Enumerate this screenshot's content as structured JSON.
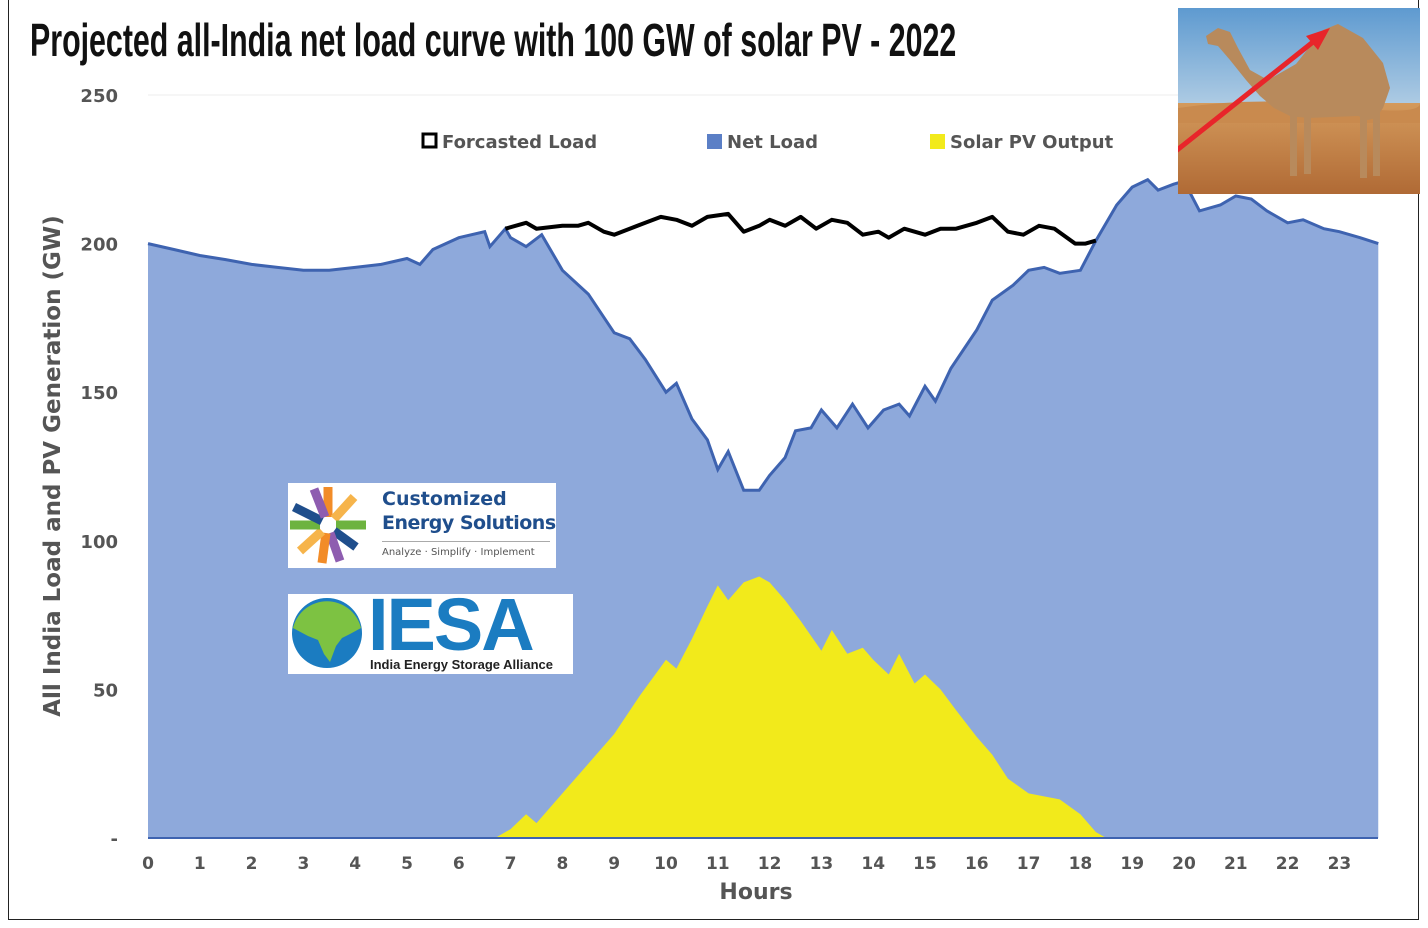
{
  "chart_data": {
    "type": "area",
    "title": "Projected all-India net load curve with 100 GW of solar PV - 2022",
    "xlabel": "Hours",
    "ylabel": "All India Load and PV Generation (GW)",
    "xlim": [
      0,
      23.75
    ],
    "ylim": [
      0,
      250
    ],
    "x_ticks": [
      "0",
      "1",
      "2",
      "3",
      "4",
      "5",
      "6",
      "7",
      "8",
      "9",
      "10",
      "11",
      "12",
      "13",
      "14",
      "15",
      "16",
      "17",
      "18",
      "19",
      "20",
      "21",
      "22",
      "23"
    ],
    "y_ticks": [
      "-",
      "50",
      "100",
      "150",
      "200",
      "250"
    ],
    "grid": false,
    "legend_position": "top",
    "series": [
      {
        "name": "Forcasted Load",
        "color": "#000000",
        "x": [
          6.9,
          7.3,
          7.5,
          8,
          8.3,
          8.5,
          8.8,
          9,
          9.3,
          9.6,
          9.9,
          10.2,
          10.5,
          10.8,
          11.2,
          11.5,
          11.8,
          12,
          12.3,
          12.6,
          12.9,
          13.2,
          13.5,
          13.8,
          14.1,
          14.3,
          14.6,
          15,
          15.3,
          15.6,
          16,
          16.3,
          16.6,
          16.9,
          17.2,
          17.5,
          17.9,
          18.1,
          18.3
        ],
        "y": [
          205,
          207,
          205,
          206,
          206,
          207,
          204,
          203,
          205,
          207,
          209,
          208,
          206,
          209,
          210,
          204,
          206,
          208,
          206,
          209,
          205,
          208,
          207,
          203,
          204,
          202,
          205,
          203,
          205,
          205,
          207,
          209,
          204,
          203,
          206,
          205,
          200,
          200,
          201
        ]
      },
      {
        "name": "Net Load",
        "color": "#8EA9DB",
        "x": [
          0,
          0.5,
          1,
          1.5,
          2,
          2.5,
          3,
          3.5,
          4,
          4.5,
          5,
          5.25,
          5.5,
          6,
          6.5,
          6.6,
          6.9,
          7,
          7.3,
          7.6,
          8,
          8.5,
          9,
          9.3,
          9.6,
          10,
          10.2,
          10.5,
          10.8,
          11,
          11.2,
          11.5,
          11.8,
          12,
          12.3,
          12.5,
          12.8,
          13,
          13.3,
          13.6,
          13.9,
          14.2,
          14.5,
          14.7,
          15,
          15.2,
          15.5,
          16,
          16.3,
          16.7,
          17,
          17.3,
          17.6,
          18,
          18.3,
          18.7,
          19,
          19.3,
          19.5,
          19.8,
          20,
          20.3,
          20.7,
          21,
          21.3,
          21.6,
          22,
          22.3,
          22.7,
          23,
          23.4,
          23.75
        ],
        "y": [
          200,
          198,
          196,
          194.6,
          193,
          192,
          191,
          191,
          192,
          193,
          195,
          193,
          198,
          202,
          204,
          199,
          205,
          202,
          199,
          203,
          191,
          183,
          170,
          168,
          161,
          150,
          153,
          141,
          134,
          124,
          130,
          117,
          117,
          122,
          128,
          137,
          138,
          144,
          138,
          146,
          138,
          144,
          146,
          142,
          152,
          147,
          158,
          171,
          181,
          186,
          191,
          192,
          190,
          191,
          201,
          213,
          219,
          221.5,
          218,
          220,
          221,
          211,
          213,
          216,
          215,
          211,
          207,
          208,
          205,
          204,
          202,
          200
        ]
      },
      {
        "name": "Solar PV Output",
        "color": "#F2EA1B",
        "x": [
          6.7,
          7,
          7.3,
          7.5,
          8,
          8.5,
          9,
          9.5,
          10,
          10.2,
          10.5,
          10.8,
          11,
          11.2,
          11.5,
          11.8,
          12,
          12.3,
          12.6,
          13,
          13.2,
          13.5,
          13.8,
          14,
          14.3,
          14.5,
          14.8,
          15,
          15.3,
          15.6,
          16,
          16.3,
          16.6,
          17,
          17.3,
          17.6,
          18,
          18.3,
          18.5
        ],
        "y": [
          0,
          3,
          8,
          5,
          15,
          25,
          35,
          48,
          60,
          57,
          67,
          78,
          85,
          80,
          86,
          88,
          86,
          80,
          73,
          63,
          70,
          62,
          64,
          60,
          55,
          62,
          52,
          55,
          50,
          43,
          34,
          28,
          20,
          15,
          14,
          13,
          8,
          2,
          0
        ]
      }
    ]
  },
  "logos": {
    "ces": {
      "line1": "Customized",
      "line2": "Energy Solutions",
      "tagline": "Analyze · Simplify · Implement"
    },
    "iesa": {
      "name": "IESA",
      "full": "India Energy Storage Alliance"
    }
  },
  "photo": {
    "subject": "camel-photo",
    "arrow_color": "#E8252A"
  }
}
